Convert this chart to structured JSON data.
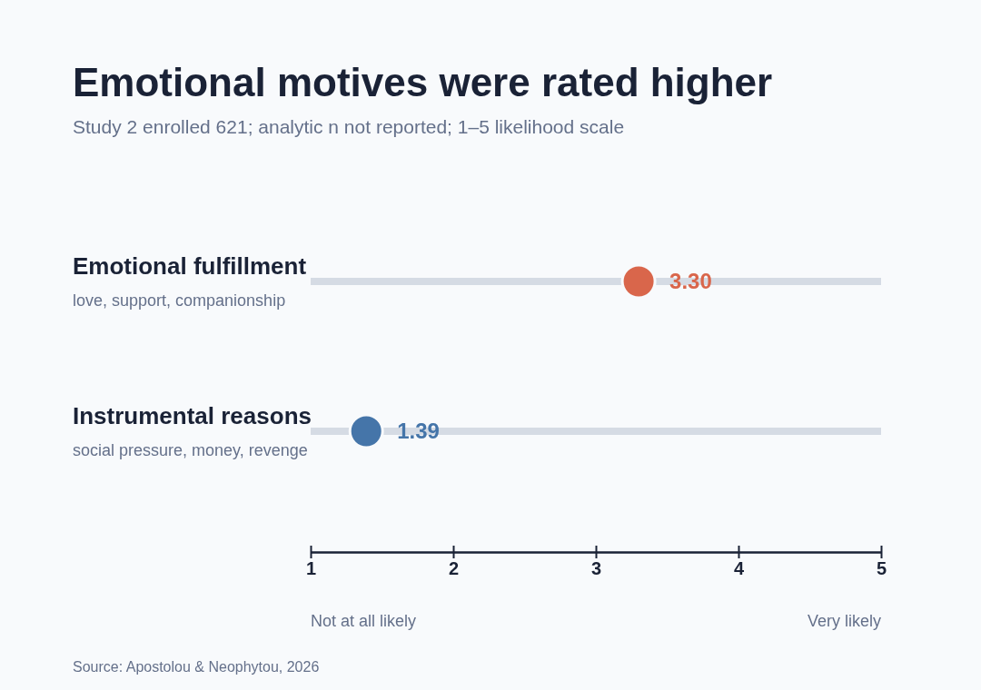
{
  "chart_data": {
    "type": "scatter",
    "orientation": "horizontal",
    "title": "Emotional motives were rated higher",
    "subtitle": "Study 2 enrolled 621; analytic n not reported; 1–5 likelihood scale",
    "categories": [
      "Emotional fulfillment",
      "Instrumental reasons"
    ],
    "series": [
      {
        "type": "bar",
        "color": "#d5dbe4",
        "base": [
          1,
          1
        ],
        "values": [
          4,
          4
        ]
      },
      {
        "colors": [
          "#d9664b",
          "#4575a9"
        ],
        "values": [
          3.3,
          1.39
        ],
        "value_labels": [
          "3.30",
          "1.39"
        ]
      }
    ],
    "marker": "circle",
    "xlim": [
      1,
      5
    ],
    "xticks": [
      1,
      2,
      3,
      4,
      5
    ],
    "annotations": [
      "love, support, companionship",
      "social pressure, money, revenge",
      "Not at all likely",
      "Very likely",
      "Source: Apostolou & Neophytou, 2026"
    ]
  }
}
